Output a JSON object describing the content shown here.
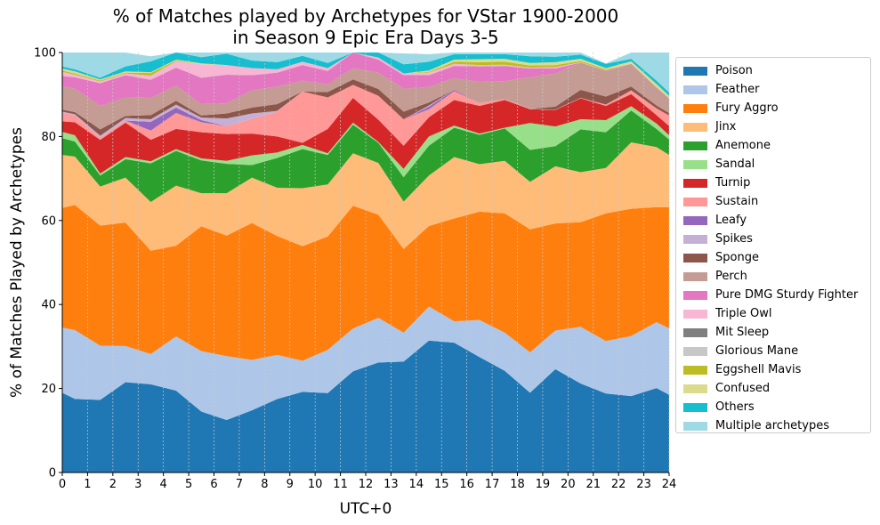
{
  "chart_data": {
    "type": "area",
    "stacked": true,
    "title": "% of Matches played by Archetypes for VStar 1900-2000\nin Season 9 Epic Era Days 3-5",
    "xlabel": "UTC+0",
    "ylabel": "% of Matches Played by Archetypes",
    "xlim": [
      0,
      24
    ],
    "ylim": [
      0,
      100
    ],
    "x_ticks": [
      "0",
      "1",
      "2",
      "3",
      "4",
      "5",
      "6",
      "7",
      "8",
      "9",
      "10",
      "11",
      "12",
      "13",
      "14",
      "15",
      "16",
      "17",
      "18",
      "19",
      "20",
      "21",
      "22",
      "23",
      "24"
    ],
    "y_ticks": [
      "0",
      "20",
      "40",
      "60",
      "80",
      "100"
    ],
    "grid": "vertical dotted",
    "legend_position": "outside right",
    "x": [
      0,
      0.5,
      1.5,
      2.5,
      3.5,
      4.5,
      5.5,
      6.5,
      7.5,
      8.5,
      9.5,
      10.5,
      11.5,
      12.5,
      13.5,
      14.5,
      15.5,
      16.5,
      17.5,
      18.5,
      19.5,
      20.5,
      21.5,
      22.5,
      23.5,
      24
    ],
    "series": [
      {
        "name": "Poison",
        "color": "#1f77b4",
        "values": [
          19,
          17.5,
          17.3,
          21.5,
          21,
          19.5,
          14.5,
          12.5,
          14.8,
          17.5,
          19.2,
          18.9,
          24.1,
          26.2,
          26.4,
          31.4,
          30.9,
          27.5,
          24.2,
          19,
          24.6,
          21.2,
          18.8,
          18.2,
          20.1,
          18.5
        ]
      },
      {
        "name": "Feather",
        "color": "#aec7e8",
        "values": [
          15.5,
          16.4,
          12.9,
          8.6,
          7.2,
          12.9,
          14.4,
          15.2,
          12,
          10.5,
          7.4,
          10.3,
          10.2,
          10.6,
          6.9,
          8.1,
          5.1,
          8.8,
          9.1,
          9.6,
          9.2,
          13.5,
          12.5,
          14.3,
          15.7,
          15.8
        ]
      },
      {
        "name": "Fury Aggro",
        "color": "#ff7f0e",
        "values": [
          28.5,
          29.8,
          28.6,
          29.4,
          24.6,
          21.6,
          29.7,
          28.7,
          32.6,
          28.3,
          27.3,
          27,
          29.2,
          24.6,
          19.9,
          19.2,
          24.5,
          25.8,
          28.4,
          29.3,
          25.5,
          24.9,
          30.4,
          30.3,
          27.4,
          28.9
        ]
      },
      {
        "name": "Jinx",
        "color": "#ffbb78",
        "values": [
          12.6,
          11.5,
          9.3,
          10.7,
          11.6,
          14.3,
          7.9,
          10.1,
          10.8,
          11.5,
          13.8,
          12.4,
          12.5,
          12.3,
          11.3,
          12,
          14.6,
          11.3,
          12.5,
          11.3,
          13.6,
          11.9,
          10.8,
          15.8,
          14.3,
          12.4
        ]
      },
      {
        "name": "Anemone",
        "color": "#2ca02c",
        "values": [
          4,
          3.6,
          2.6,
          4.4,
          9.2,
          8.3,
          7.8,
          7,
          3,
          7.1,
          9.3,
          7,
          6.8,
          4.8,
          5.8,
          7.1,
          7,
          7,
          7.7,
          7.6,
          4.8,
          10.2,
          8.5,
          7.6,
          4.3,
          3.7
        ]
      },
      {
        "name": "Sandal",
        "color": "#98df8a",
        "values": [
          1.5,
          1.5,
          0.5,
          0.5,
          0.5,
          0.4,
          0.5,
          0.7,
          2.3,
          1.3,
          1,
          0.4,
          0.5,
          0.2,
          2,
          2.2,
          0.5,
          0.3,
          0.2,
          6.4,
          4.7,
          2.4,
          2.9,
          1,
          1.3,
          1
        ]
      },
      {
        "name": "Turnip",
        "color": "#d62728",
        "values": [
          2.5,
          3.1,
          8,
          8.2,
          5.1,
          4.8,
          6.2,
          6.4,
          5.2,
          3.8,
          0.5,
          5.8,
          5.9,
          5.3,
          5.5,
          4.6,
          6.1,
          6.6,
          6.6,
          3.3,
          3.9,
          5,
          3.4,
          2.9,
          2,
          2.2
        ]
      },
      {
        "name": "Sustain",
        "color": "#ff9896",
        "values": [
          2,
          1.6,
          0.5,
          0.5,
          2.2,
          3.8,
          2.4,
          1.9,
          3.5,
          5.9,
          12.2,
          7.5,
          3.1,
          5.7,
          6.3,
          1.9,
          2.1,
          0.7,
          0.2,
          0.1,
          0.1,
          0.1,
          0.3,
          0.9,
          1.6,
          2.5
        ]
      },
      {
        "name": "Leafy",
        "color": "#9467bd",
        "values": [
          0,
          0,
          0,
          0,
          2.1,
          1.3,
          0.5,
          0,
          0,
          0,
          0,
          0,
          0,
          0,
          0,
          0.6,
          0.3,
          0,
          0,
          0,
          0,
          0,
          0,
          0,
          0,
          0
        ]
      },
      {
        "name": "Spikes",
        "color": "#c5b0d5",
        "values": [
          0.3,
          0.3,
          0.5,
          0.6,
          0.6,
          0.7,
          0.6,
          1.8,
          1.3,
          0.2,
          0,
          0,
          0,
          0,
          0,
          0.3,
          0,
          0,
          0,
          0,
          0,
          0,
          0,
          0,
          0,
          0
        ]
      },
      {
        "name": "Sponge",
        "color": "#8c564b",
        "values": [
          0.5,
          0.5,
          1.5,
          0.5,
          1,
          0.9,
          0.5,
          1.2,
          1.4,
          1.6,
          0,
          1.3,
          1.3,
          1.6,
          1.8,
          0.7,
          0,
          0,
          0,
          0,
          0.7,
          1.9,
          1.9,
          0.9,
          0.7,
          0.6
        ]
      },
      {
        "name": "Perch",
        "color": "#c49c94",
        "values": [
          5.5,
          5.6,
          5.6,
          4.4,
          4.1,
          3.6,
          2.7,
          2.4,
          4.1,
          4.2,
          2.6,
          1.8,
          2.7,
          3.9,
          5.5,
          3.7,
          2.8,
          5,
          4.3,
          7.5,
          7.9,
          6.5,
          6.2,
          5.4,
          4.3,
          3.5
        ]
      },
      {
        "name": "Pure DMG Sturdy Fighter",
        "color": "#e377c2",
        "values": [
          2.5,
          2.7,
          5.4,
          5.3,
          4.3,
          4.3,
          6.3,
          6.8,
          3.6,
          3.3,
          3.7,
          3.2,
          3.8,
          3.1,
          3.2,
          2.8,
          2.9,
          3.7,
          3.6,
          2.1,
          1.2,
          0,
          0,
          0,
          0,
          0
        ]
      },
      {
        "name": "Triple Owl",
        "color": "#f7b6d2",
        "values": [
          1,
          0.6,
          0.4,
          0.4,
          1,
          1.5,
          3.2,
          2.3,
          1.7,
          0.8,
          0.8,
          0.7,
          0.5,
          0.5,
          0.4,
          0.6,
          0.5,
          0.3,
          0.3,
          0.2,
          0.3,
          0.1,
          0.1,
          0.1,
          0.1,
          0.1
        ]
      },
      {
        "name": "Mit Sleep",
        "color": "#7f7f7f",
        "values": [
          0,
          0,
          0,
          0,
          0,
          0,
          0,
          0,
          0,
          0,
          0,
          0,
          0,
          0,
          0,
          0,
          0,
          0,
          0,
          0,
          0,
          0,
          0,
          0,
          0,
          0
        ]
      },
      {
        "name": "Glorious Mane",
        "color": "#c7c7c7",
        "values": [
          0,
          0,
          0,
          0,
          0,
          0,
          0,
          0,
          0,
          0,
          0,
          0,
          0,
          0,
          0,
          0,
          0,
          0,
          0,
          0,
          0,
          0,
          0,
          0,
          0,
          0
        ]
      },
      {
        "name": "Eggshell Mavis",
        "color": "#bcbd22",
        "values": [
          0.3,
          0.3,
          0.2,
          0.2,
          0.6,
          0.2,
          0,
          0,
          0,
          0,
          0,
          0,
          0,
          0,
          0,
          0.2,
          0.5,
          0.7,
          0.7,
          0.5,
          0.5,
          0.3,
          0.2,
          0,
          0,
          0
        ]
      },
      {
        "name": "Confused",
        "color": "#dbdb8d",
        "values": [
          0.5,
          0.5,
          0.3,
          0.3,
          0.2,
          0.2,
          0.2,
          0,
          0,
          0,
          0,
          0,
          0,
          0,
          0,
          0.3,
          0.5,
          0.7,
          0.7,
          0.6,
          0.7,
          0.5,
          0.3,
          0.5,
          0.7,
          0.5
        ]
      },
      {
        "name": "Others",
        "color": "#17becf",
        "values": [
          0.5,
          0.5,
          0.4,
          1.2,
          2.6,
          1.9,
          1.5,
          2.7,
          1.8,
          1.7,
          1.4,
          1.2,
          0.5,
          1.4,
          2.2,
          2.1,
          1.3,
          1.2,
          1.1,
          1.6,
          1.3,
          1,
          1,
          0.6,
          0.8,
          0.8
        ]
      },
      {
        "name": "Multiple archetypes",
        "color": "#9edae5",
        "values": [
          3.3,
          4,
          6,
          3.3,
          1.2,
          1.6,
          1.3,
          1.7,
          1.9,
          2.3,
          1,
          2.5,
          1.9,
          1.1,
          2.6,
          1.8,
          1.9,
          1.4,
          1.1,
          0.9,
          1.5,
          0.7,
          0.1,
          1.9,
          7.1,
          10.8
        ]
      }
    ]
  }
}
